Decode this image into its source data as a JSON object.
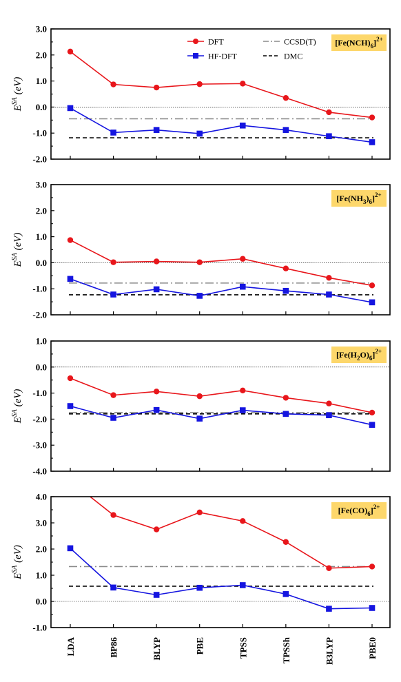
{
  "legend": {
    "dft": "DFT",
    "hfdft": "HF-DFT",
    "ccsdt": "CCSD(T)",
    "dmc": "DMC"
  },
  "colors": {
    "dft": "#e8161b",
    "hfdft": "#1515e0",
    "ccsdt": "#8a8a8a",
    "dmc": "#000000",
    "badge": "#fdd76b"
  },
  "chart_data": [
    {
      "type": "line",
      "panel_label": "[Fe(NCH)6]2+",
      "ylabel": "E^SA (eV)",
      "categories": [
        "LDA",
        "BP86",
        "BLYP",
        "PBE",
        "TPSS",
        "TPSSh",
        "B3LYP",
        "PBE0"
      ],
      "ylim": [
        -2.0,
        3.0
      ],
      "yticks": [
        "3.0",
        "2.0",
        "1.0",
        "0.0",
        "-1.0",
        "-2.0"
      ],
      "series": [
        {
          "name": "DFT",
          "values": [
            2.13,
            0.87,
            0.75,
            0.88,
            0.9,
            0.35,
            -0.2,
            -0.4
          ]
        },
        {
          "name": "HF-DFT",
          "values": [
            -0.04,
            -0.98,
            -0.88,
            -1.02,
            -0.71,
            -0.88,
            -1.12,
            -1.35
          ]
        }
      ],
      "ccsdt": -0.45,
      "dmc": -1.18,
      "zero_line": 0.0
    },
    {
      "type": "line",
      "panel_label": "[Fe(NH3)6]2+",
      "ylabel": "E^SA (eV)",
      "categories": [
        "LDA",
        "BP86",
        "BLYP",
        "PBE",
        "TPSS",
        "TPSSh",
        "B3LYP",
        "PBE0"
      ],
      "ylim": [
        -2.0,
        3.0
      ],
      "yticks": [
        "3.0",
        "2.0",
        "1.0",
        "0.0",
        "-1.0",
        "-2.0"
      ],
      "series": [
        {
          "name": "DFT",
          "values": [
            0.87,
            0.02,
            0.05,
            0.02,
            0.15,
            -0.22,
            -0.58,
            -0.87
          ]
        },
        {
          "name": "HF-DFT",
          "values": [
            -0.62,
            -1.22,
            -1.02,
            -1.27,
            -0.92,
            -1.08,
            -1.22,
            -1.52
          ]
        }
      ],
      "ccsdt": -0.78,
      "dmc": -1.23,
      "zero_line": 0.0
    },
    {
      "type": "line",
      "panel_label": "[Fe(H2O)6]2+",
      "ylabel": "E^SA (eV)",
      "categories": [
        "LDA",
        "BP86",
        "BLYP",
        "PBE",
        "TPSS",
        "TPSSh",
        "B3LYP",
        "PBE0"
      ],
      "ylim": [
        -4.0,
        1.0
      ],
      "yticks": [
        "1.0",
        "0.0",
        "-1.0",
        "-2.0",
        "-3.0",
        "-4.0"
      ],
      "series": [
        {
          "name": "DFT",
          "values": [
            -0.43,
            -1.08,
            -0.94,
            -1.12,
            -0.9,
            -1.18,
            -1.4,
            -1.75
          ]
        },
        {
          "name": "HF-DFT",
          "values": [
            -1.5,
            -1.95,
            -1.65,
            -1.98,
            -1.66,
            -1.8,
            -1.85,
            -2.22
          ]
        }
      ],
      "ccsdt": -1.75,
      "dmc": -1.8,
      "zero_line": 0.0
    },
    {
      "type": "line",
      "panel_label": "[Fe(CO)6]2+",
      "ylabel": "E^SA (eV)",
      "categories": [
        "LDA",
        "BP86",
        "BLYP",
        "PBE",
        "TPSS",
        "TPSSh",
        "B3LYP",
        "PBE0"
      ],
      "ylim": [
        -1.0,
        4.0
      ],
      "yticks": [
        "4.0",
        "3.0",
        "2.0",
        "1.0",
        "0.0",
        "-1.0"
      ],
      "series": [
        {
          "name": "DFT",
          "values": [
            4.6,
            3.3,
            2.75,
            3.4,
            3.07,
            2.27,
            1.27,
            1.33
          ]
        },
        {
          "name": "HF-DFT",
          "values": [
            2.03,
            0.53,
            0.25,
            0.52,
            0.62,
            0.28,
            -0.28,
            -0.25
          ]
        }
      ],
      "ccsdt": 1.33,
      "dmc": 0.58,
      "zero_line": 0.0
    }
  ]
}
